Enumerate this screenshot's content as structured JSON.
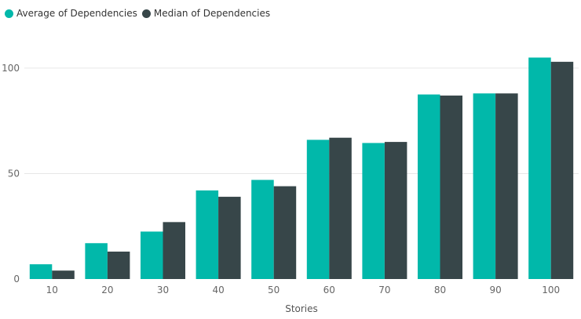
{
  "chart_data": {
    "type": "bar",
    "categories": [
      "10",
      "20",
      "30",
      "40",
      "50",
      "60",
      "70",
      "80",
      "90",
      "100"
    ],
    "series": [
      {
        "name": "Average of Dependencies",
        "color": "#01b8aa",
        "values": [
          7,
          17,
          22.5,
          42,
          47,
          66,
          64.5,
          87.5,
          88,
          105
        ]
      },
      {
        "name": "Median of Dependencies",
        "color": "#374649",
        "values": [
          4,
          13,
          27,
          39,
          44,
          67,
          65,
          87,
          88,
          103
        ]
      }
    ],
    "title": "",
    "xlabel": "Stories",
    "ylabel": "",
    "ylim": [
      0,
      110
    ],
    "yticks": [
      "0",
      "50",
      "100"
    ],
    "grid": true,
    "legend_position": "top-left"
  }
}
